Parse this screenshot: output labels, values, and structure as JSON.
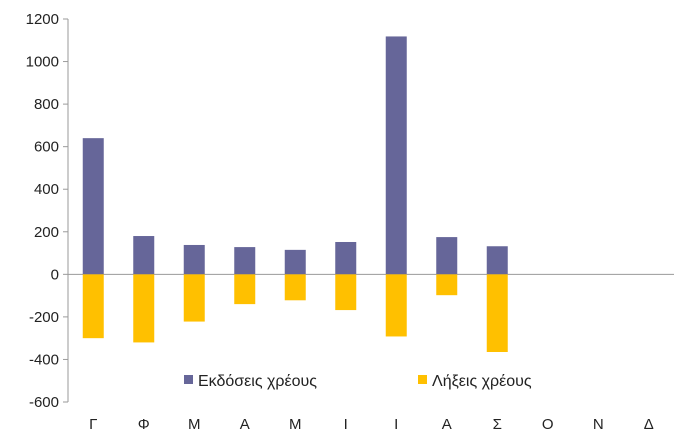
{
  "chart_data": {
    "type": "bar",
    "stacked": true,
    "categories": [
      "Γ",
      "Φ",
      "Μ",
      "Α",
      "Μ",
      "Ι",
      "Ι",
      "Α",
      "Σ",
      "Ο",
      "Ν",
      "Δ"
    ],
    "series": [
      {
        "name": "Εκδόσεις χρέους",
        "color": "#666699",
        "values": [
          640,
          180,
          138,
          128,
          115,
          152,
          1118,
          175,
          132,
          null,
          null,
          null
        ]
      },
      {
        "name": "Λήξεις χρέους",
        "color": "#ffc000",
        "values": [
          -300,
          -320,
          -222,
          -140,
          -122,
          -168,
          -292,
          -98,
          -365,
          null,
          null,
          null
        ]
      }
    ],
    "ylim": [
      -600,
      1200
    ],
    "yticks": [
      -600,
      -400,
      -200,
      0,
      200,
      400,
      600,
      800,
      1000,
      1200
    ],
    "grid": false,
    "legend_position": "bottom-inside",
    "title": "",
    "xlabel": "",
    "ylabel": ""
  }
}
